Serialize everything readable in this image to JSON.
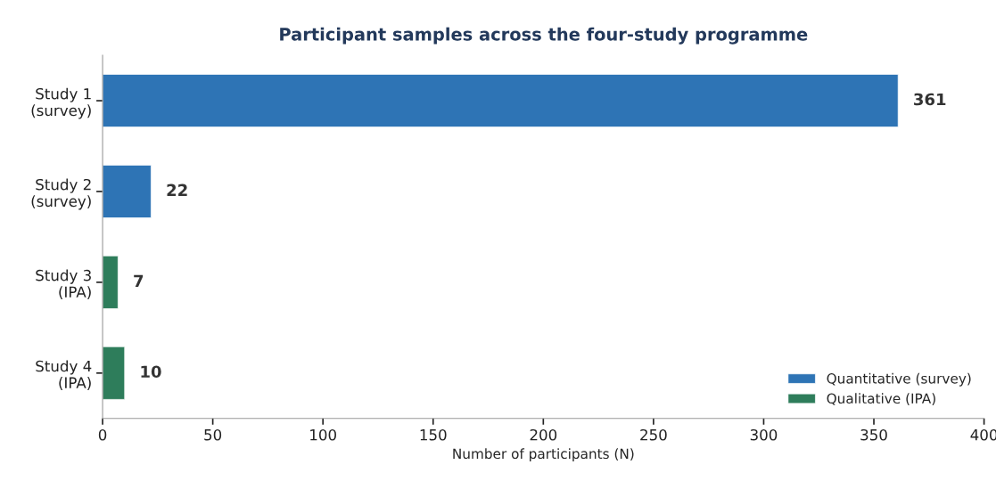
{
  "chart_data": {
    "type": "bar",
    "orientation": "horizontal",
    "title": "Participant samples across the four-study programme",
    "xlabel": "Number of participants (N)",
    "categories": [
      "Study 1\n(survey)",
      "Study 2\n(survey)",
      "Study 3\n(IPA)",
      "Study 4\n(IPA)"
    ],
    "series": [
      {
        "name": "Quantitative (survey)",
        "color": "#2e74b5",
        "values": [
          361,
          22,
          null,
          null
        ]
      },
      {
        "name": "Qualitative (IPA)",
        "color": "#2e7d5b",
        "values": [
          null,
          null,
          7,
          10
        ]
      }
    ],
    "xlim": [
      0,
      400
    ],
    "xticks": [
      0,
      50,
      100,
      150,
      200,
      250,
      300,
      350,
      400
    ],
    "data_labels": true,
    "legend": "bottom right",
    "grid": false
  }
}
